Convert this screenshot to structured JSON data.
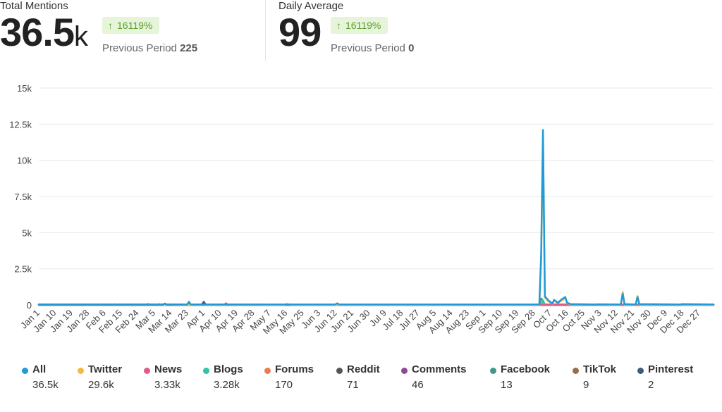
{
  "stats": [
    {
      "title": "Total Mentions",
      "value": "36.5",
      "unit": "k",
      "change": "16119%",
      "prev_label": "Previous Period",
      "prev_value": "225"
    },
    {
      "title": "Daily Average",
      "value": "99",
      "unit": "",
      "change": "16119%",
      "prev_label": "Previous Period",
      "prev_value": "0"
    }
  ],
  "colors": {
    "badge_bg": "#e6f4d9",
    "badge_text": "#5a9e2a"
  },
  "chart_data": {
    "type": "line",
    "y_ticks": [
      "0",
      "2.5k",
      "5k",
      "7.5k",
      "10k",
      "12.5k",
      "15k"
    ],
    "ylim": [
      0,
      15000
    ],
    "x_ticks": [
      "Jan 1",
      "Jan 10",
      "Jan 19",
      "Jan 28",
      "Feb 6",
      "Feb 15",
      "Feb 24",
      "Mar 5",
      "Mar 14",
      "Mar 23",
      "Apr 1",
      "Apr 10",
      "Apr 19",
      "Apr 28",
      "May 7",
      "May 16",
      "May 25",
      "Jun 3",
      "Jun 12",
      "Jun 21",
      "Jun 30",
      "Jul 9",
      "Jul 18",
      "Jul 27",
      "Aug 5",
      "Aug 14",
      "Aug 23",
      "Sep 1",
      "Sep 10",
      "Sep 19",
      "Sep 28",
      "Oct 7",
      "Oct 16",
      "Oct 25",
      "Nov 3",
      "Nov 12",
      "Nov 21",
      "Nov 30",
      "Dec 9",
      "Dec 18",
      "Dec 27"
    ],
    "x_range_days": [
      0,
      364
    ],
    "grid": true,
    "series": [
      {
        "name": "All",
        "color": "#1f9bd7",
        "points": [
          [
            0,
            20
          ],
          [
            67,
            20
          ],
          [
            68,
            100
          ],
          [
            69,
            20
          ],
          [
            80,
            30
          ],
          [
            81,
            220
          ],
          [
            82,
            30
          ],
          [
            119,
            30
          ],
          [
            120,
            40
          ],
          [
            160,
            40
          ],
          [
            161,
            110
          ],
          [
            162,
            40
          ],
          [
            270,
            40
          ],
          [
            271,
            3500
          ],
          [
            272,
            12100
          ],
          [
            273,
            600
          ],
          [
            275,
            300
          ],
          [
            277,
            100
          ],
          [
            278,
            350
          ],
          [
            280,
            150
          ],
          [
            282,
            380
          ],
          [
            284,
            550
          ],
          [
            285,
            150
          ],
          [
            287,
            60
          ],
          [
            300,
            40
          ],
          [
            301,
            50
          ],
          [
            314,
            40
          ],
          [
            315,
            780
          ],
          [
            316,
            60
          ],
          [
            322,
            40
          ],
          [
            323,
            550
          ],
          [
            324,
            60
          ],
          [
            346,
            40
          ],
          [
            347,
            60
          ],
          [
            364,
            40
          ]
        ]
      },
      {
        "name": "Twitter",
        "color": "#f5b942",
        "points": [
          [
            0,
            10
          ],
          [
            133,
            10
          ],
          [
            134,
            80
          ],
          [
            136,
            10
          ],
          [
            270,
            10
          ],
          [
            271,
            3000
          ],
          [
            272,
            11300
          ],
          [
            273,
            500
          ],
          [
            275,
            250
          ],
          [
            277,
            80
          ],
          [
            278,
            300
          ],
          [
            280,
            120
          ],
          [
            282,
            300
          ],
          [
            284,
            450
          ],
          [
            285,
            120
          ],
          [
            287,
            40
          ],
          [
            314,
            20
          ],
          [
            315,
            900
          ],
          [
            316,
            30
          ],
          [
            322,
            20
          ],
          [
            323,
            620
          ],
          [
            324,
            30
          ],
          [
            364,
            10
          ]
        ]
      },
      {
        "name": "News",
        "color": "#e05a8a",
        "points": [
          [
            0,
            10
          ],
          [
            40,
            10
          ],
          [
            41,
            60
          ],
          [
            42,
            10
          ],
          [
            64,
            10
          ],
          [
            65,
            70
          ],
          [
            66,
            10
          ],
          [
            100,
            10
          ],
          [
            101,
            120
          ],
          [
            102,
            10
          ],
          [
            364,
            10
          ]
        ]
      },
      {
        "name": "Blogs",
        "color": "#2ec4a7",
        "points": [
          [
            0,
            10
          ],
          [
            58,
            10
          ],
          [
            59,
            80
          ],
          [
            60,
            10
          ],
          [
            110,
            10
          ],
          [
            111,
            50
          ],
          [
            112,
            10
          ],
          [
            271,
            10
          ],
          [
            272,
            300
          ],
          [
            273,
            10
          ],
          [
            364,
            10
          ]
        ]
      },
      {
        "name": "Forums",
        "color": "#f07a4a",
        "points": [
          [
            0,
            5
          ],
          [
            135,
            5
          ],
          [
            136,
            30
          ],
          [
            137,
            5
          ],
          [
            364,
            5
          ]
        ]
      },
      {
        "name": "Reddit",
        "color": "#555555",
        "points": [
          [
            0,
            5
          ],
          [
            364,
            5
          ]
        ]
      },
      {
        "name": "Comments",
        "color": "#8e4a8e",
        "points": [
          [
            0,
            3
          ],
          [
            364,
            3
          ]
        ]
      },
      {
        "name": "Facebook",
        "color": "#3c9a8c",
        "points": [
          [
            0,
            3
          ],
          [
            270,
            3
          ],
          [
            271,
            450
          ],
          [
            272,
            300
          ],
          [
            273,
            3
          ],
          [
            364,
            3
          ]
        ]
      },
      {
        "name": "TikTok",
        "color": "#9a6a4a",
        "points": [
          [
            0,
            2
          ],
          [
            364,
            2
          ]
        ]
      },
      {
        "name": "Pinterest",
        "color": "#3d5a7a",
        "points": [
          [
            0,
            40
          ],
          [
            88,
            40
          ],
          [
            89,
            220
          ],
          [
            90,
            40
          ],
          [
            364,
            30
          ]
        ]
      }
    ]
  },
  "legend": [
    {
      "name": "All",
      "value": "36.5k",
      "color": "#1f9bd7"
    },
    {
      "name": "Twitter",
      "value": "29.6k",
      "color": "#f5b942"
    },
    {
      "name": "News",
      "value": "3.33k",
      "color": "#e05a8a"
    },
    {
      "name": "Blogs",
      "value": "3.28k",
      "color": "#2ec4a7"
    },
    {
      "name": "Forums",
      "value": "170",
      "color": "#f07a4a"
    },
    {
      "name": "Reddit",
      "value": "71",
      "color": "#555555"
    },
    {
      "name": "Comments",
      "value": "46",
      "color": "#8e4a8e"
    },
    {
      "name": "Facebook",
      "value": "13",
      "color": "#3c9a8c"
    },
    {
      "name": "TikTok",
      "value": "9",
      "color": "#9a6a4a"
    },
    {
      "name": "Pinterest",
      "value": "2",
      "color": "#3d5a7a"
    }
  ]
}
